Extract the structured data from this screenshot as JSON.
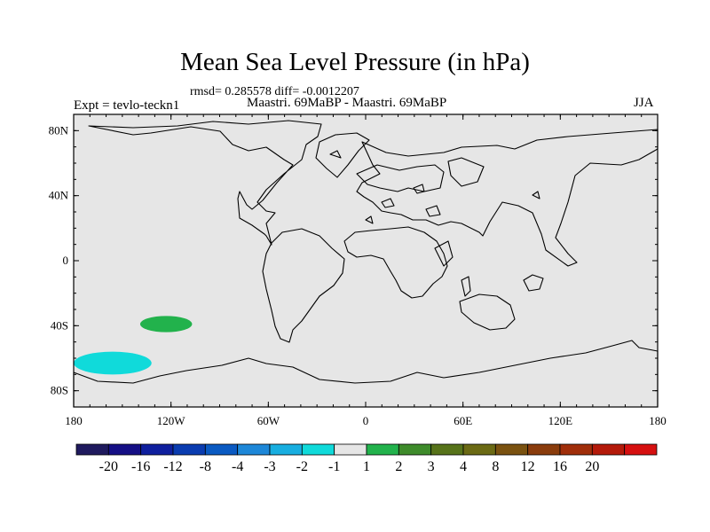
{
  "title": "Mean Sea Level Pressure (in hPa)",
  "stats": "rmsd= 0.285578 diff= -0.0012207",
  "experiment": "Expt = tevlo-teckn1",
  "experiments_compared": "Maastri.  69MaBP - Maastri.  69MaBP",
  "season": "JJA",
  "map": {
    "background_color": "#e6e6e6",
    "lat_range": [
      -90,
      90
    ],
    "lon_range": [
      -180,
      180
    ],
    "lat_ticks": [
      {
        "value": 80,
        "label": "80N"
      },
      {
        "value": 40,
        "label": "40N"
      },
      {
        "value": 0,
        "label": "0"
      },
      {
        "value": -40,
        "label": "40S"
      },
      {
        "value": -80,
        "label": "80S"
      }
    ],
    "lon_ticks": [
      {
        "value": -180,
        "label": "180"
      },
      {
        "value": -120,
        "label": "120W"
      },
      {
        "value": -60,
        "label": "60W"
      },
      {
        "value": 0,
        "label": "0"
      },
      {
        "value": 60,
        "label": "60E"
      },
      {
        "value": 120,
        "label": "120E"
      },
      {
        "value": 180,
        "label": "180"
      }
    ],
    "anomalies": [
      {
        "name": "positive-anomaly-south-pacific",
        "value_bin": "1 to 2",
        "color": "#22b24c",
        "center_lon": -123,
        "center_lat": -39,
        "lon_radius": 16,
        "lat_radius": 5
      },
      {
        "name": "negative-anomaly-antarctic-pacific",
        "value_bin": "-2 to -1",
        "color": "#10dada",
        "center_lon": -156,
        "center_lat": -63,
        "lon_radius": 24,
        "lat_radius": 7
      }
    ]
  },
  "colorbar": {
    "colors": [
      "#1f1a5e",
      "#150f85",
      "#0f1f9e",
      "#0a3cb0",
      "#0a5ac2",
      "#1d87d8",
      "#18aee0",
      "#10dada",
      "#e6e6e6",
      "#22b24c",
      "#3e8b2b",
      "#57731a",
      "#6b6a14",
      "#7a5210",
      "#8a3c0c",
      "#a02e0a",
      "#b41a0a",
      "#d61010"
    ],
    "labels": [
      "-20",
      "-16",
      "-12",
      "-8",
      "-4",
      "-3",
      "-2",
      "-1",
      "1",
      "2",
      "3",
      "4",
      "8",
      "12",
      "16",
      "20"
    ]
  }
}
